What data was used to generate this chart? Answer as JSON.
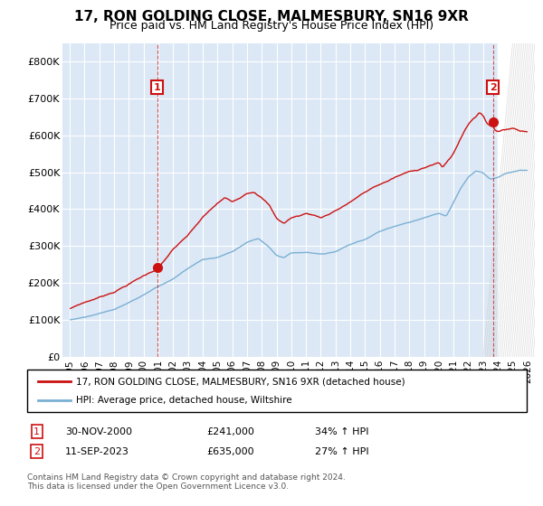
{
  "title": "17, RON GOLDING CLOSE, MALMESBURY, SN16 9XR",
  "subtitle": "Price paid vs. HM Land Registry's House Price Index (HPI)",
  "ylim": [
    0,
    850000
  ],
  "yticks": [
    0,
    100000,
    200000,
    300000,
    400000,
    500000,
    600000,
    700000,
    800000
  ],
  "ytick_labels": [
    "£0",
    "£100K",
    "£200K",
    "£300K",
    "£400K",
    "£500K",
    "£600K",
    "£700K",
    "£800K"
  ],
  "bg_color": "#dce8f5",
  "grid_color": "white",
  "hpi_color": "#7ab0d4",
  "price_color": "#cc1111",
  "legend_label_price": "17, RON GOLDING CLOSE, MALMESBURY, SN16 9XR (detached house)",
  "legend_label_hpi": "HPI: Average price, detached house, Wiltshire",
  "purchase1_date": "30-NOV-2000",
  "purchase1_price": 241000,
  "purchase1_label": "34% ↑ HPI",
  "purchase1_year": 2000.917,
  "purchase2_date": "11-SEP-2023",
  "purchase2_price": 635000,
  "purchase2_label": "27% ↑ HPI",
  "purchase2_year": 2023.667,
  "footer": "Contains HM Land Registry data © Crown copyright and database right 2024.\nThis data is licensed under the Open Government Licence v3.0.",
  "xlim": [
    1994.5,
    2026.5
  ],
  "xtick_years": [
    1995,
    1996,
    1997,
    1998,
    1999,
    2000,
    2001,
    2002,
    2003,
    2004,
    2005,
    2006,
    2007,
    2008,
    2009,
    2010,
    2011,
    2012,
    2013,
    2014,
    2015,
    2016,
    2017,
    2018,
    2019,
    2020,
    2021,
    2022,
    2023,
    2024,
    2025,
    2026
  ],
  "hatched_region_start": 2024.0,
  "hatched_region_end": 2026.5
}
